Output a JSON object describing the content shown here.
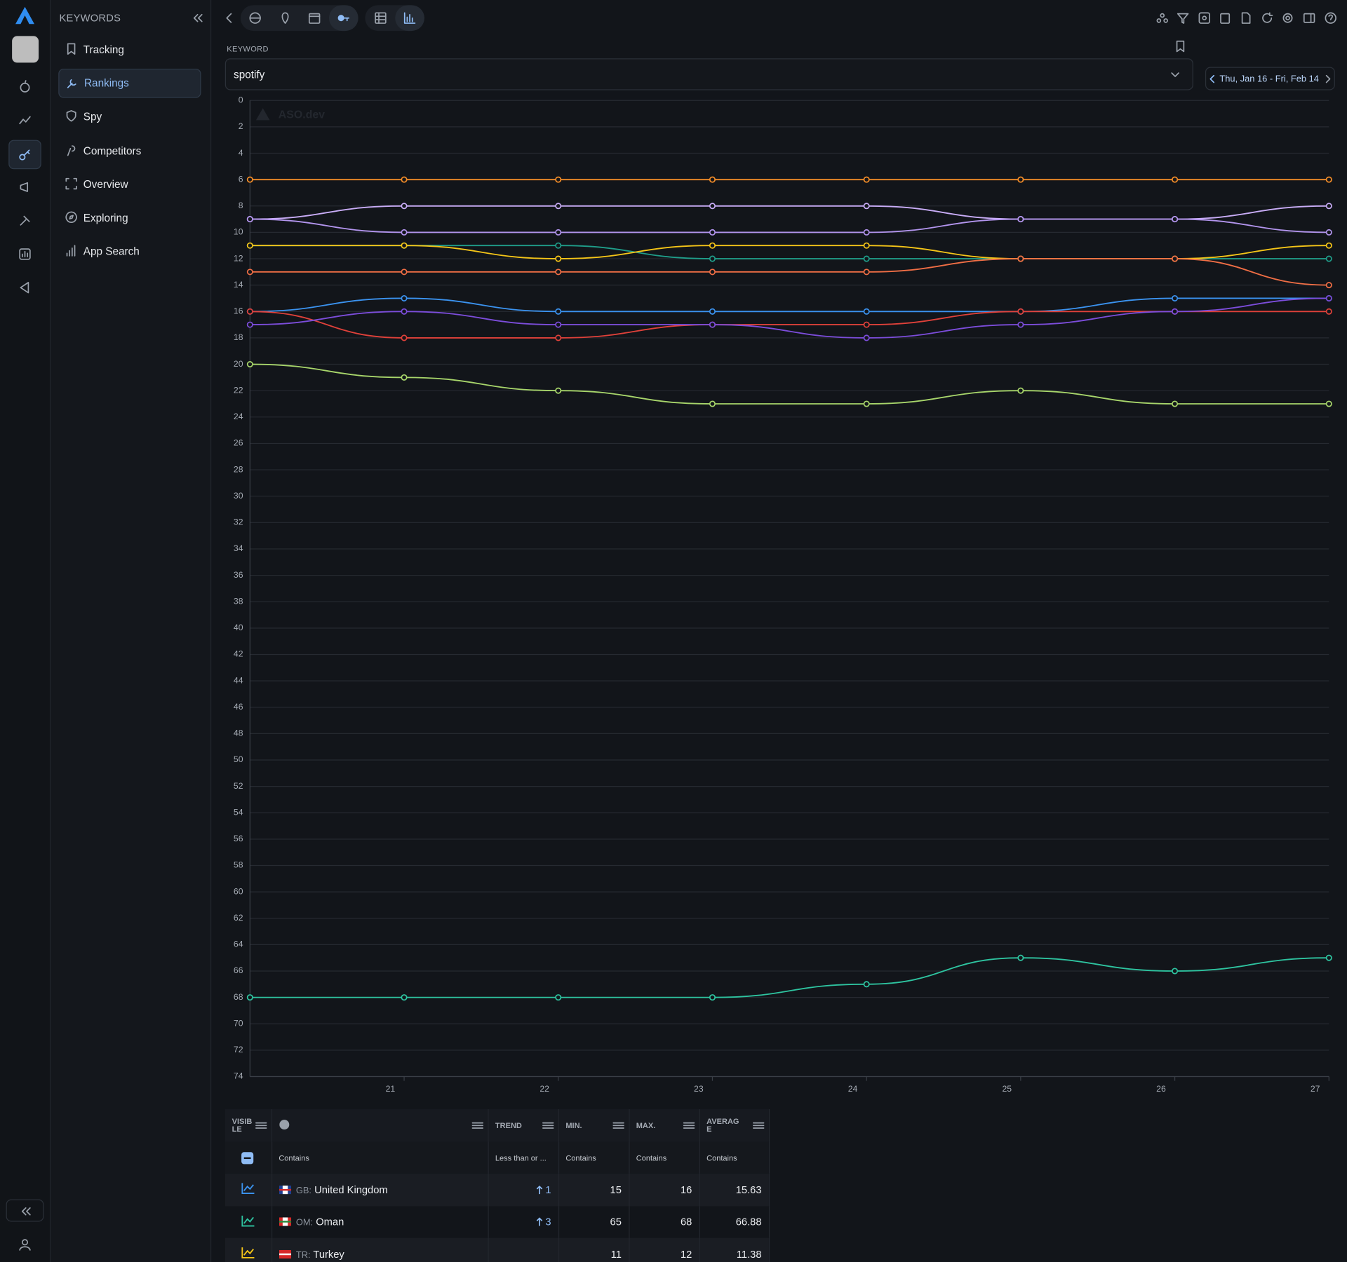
{
  "sidebar": {
    "heading": "KEYWORDS",
    "items": [
      "Tracking",
      "Rankings",
      "Spy",
      "Competitors",
      "Overview",
      "Exploring",
      "App Search"
    ]
  },
  "keyword": {
    "label": "KEYWORD",
    "value": "spotify"
  },
  "date_range": "Thu, Jan 16 - Fri, Feb 14",
  "watermark": "ASO.dev",
  "chart_data": {
    "type": "line",
    "x": [
      20,
      21,
      22,
      23,
      24,
      25,
      26,
      27
    ],
    "xlim": [
      20,
      27
    ],
    "xticks": [
      21,
      22,
      23,
      24,
      25,
      26,
      27
    ],
    "ylim": [
      0,
      74
    ],
    "y_reversed": true,
    "yticks": [
      0,
      2,
      4,
      6,
      8,
      10,
      12,
      14,
      16,
      18,
      20,
      22,
      24,
      26,
      28,
      30,
      32,
      34,
      36,
      38,
      40,
      42,
      44,
      46,
      48,
      50,
      52,
      54,
      56,
      58,
      60,
      62,
      64,
      66,
      68,
      70,
      72,
      74
    ],
    "grid": true,
    "series": [
      {
        "color": "#f28c28",
        "values": [
          6,
          6,
          6,
          6,
          6,
          6,
          6,
          6
        ]
      },
      {
        "color": "#c9adf7",
        "values": [
          9,
          8,
          8,
          8,
          8,
          9,
          9,
          8
        ]
      },
      {
        "color": "#b395ee",
        "values": [
          9,
          10,
          10,
          10,
          10,
          9,
          9,
          10
        ]
      },
      {
        "color": "#1f9e8a",
        "values": [
          11,
          11,
          11,
          12,
          12,
          12,
          12,
          12
        ]
      },
      {
        "color": "#f5c518",
        "values": [
          11,
          11,
          12,
          11,
          11,
          12,
          12,
          11
        ]
      },
      {
        "color": "#f06e45",
        "values": [
          13,
          13,
          13,
          13,
          13,
          12,
          12,
          14
        ]
      },
      {
        "color": "#3b93f0",
        "values": [
          16,
          15,
          16,
          16,
          16,
          16,
          15,
          15
        ]
      },
      {
        "color": "#e0413a",
        "values": [
          16,
          18,
          18,
          17,
          17,
          16,
          16,
          16
        ]
      },
      {
        "color": "#7c4ddb",
        "values": [
          17,
          16,
          17,
          17,
          18,
          17,
          16,
          15
        ]
      },
      {
        "color": "#a8d66b",
        "values": [
          20,
          21,
          22,
          23,
          23,
          22,
          23,
          23
        ]
      },
      {
        "color": "#2ec4a0",
        "values": [
          68,
          68,
          68,
          68,
          67,
          65,
          66,
          65
        ]
      }
    ]
  },
  "table": {
    "headers": [
      "VISIBLE",
      "TREND",
      "MIN.",
      "MAX.",
      "AVERAGE"
    ],
    "filters": [
      "Contains",
      "Less than or ...",
      "Contains",
      "Contains",
      "Contains"
    ],
    "rows": [
      {
        "code": "GB:",
        "country": "United Kingdom",
        "trend": 1,
        "min": 15,
        "max": 16,
        "average": 15.63,
        "color": "#3b93f0"
      },
      {
        "code": "OM:",
        "country": "Oman",
        "trend": 3,
        "min": 65,
        "max": 68,
        "average": 66.88,
        "color": "#2ec4a0"
      },
      {
        "code": "TR:",
        "country": "Turkey",
        "trend": null,
        "min": 11,
        "max": 12,
        "average": 11.38,
        "color": "#f5c518"
      }
    ]
  }
}
